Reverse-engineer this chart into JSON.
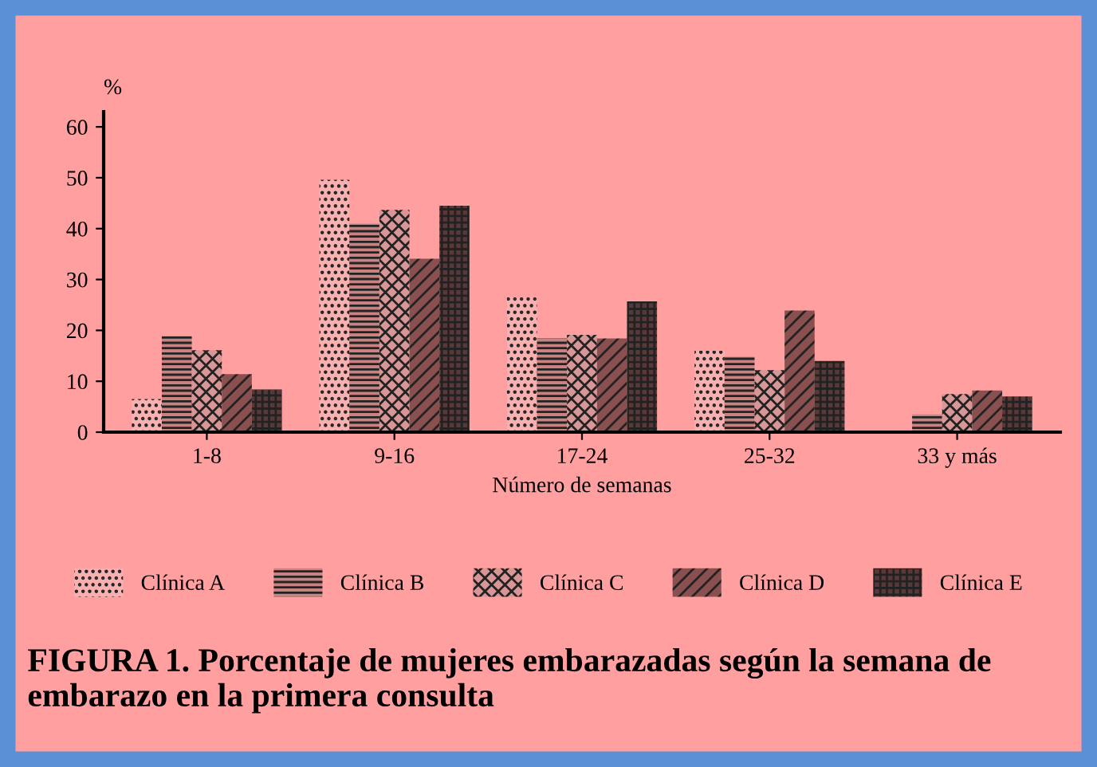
{
  "chart_data": {
    "type": "bar",
    "ylabel": "%",
    "xlabel": "Número de semanas",
    "categories": [
      "1-8",
      "9-16",
      "17-24",
      "25-32",
      "33 y más"
    ],
    "series": [
      {
        "name": "Clínica A",
        "color": "#f8b0b0",
        "values": [
          6.5,
          49.6,
          26.5,
          16,
          0.3
        ]
      },
      {
        "name": "Clínica B",
        "color": "#c88282",
        "values": [
          18.9,
          41,
          18.4,
          14.8,
          3.5
        ]
      },
      {
        "name": "Clínica C",
        "color": "#d89696",
        "values": [
          16.1,
          43.7,
          19.1,
          12.2,
          7.5
        ]
      },
      {
        "name": "Clínica D",
        "color": "#8a5050",
        "values": [
          11.4,
          34.1,
          18.4,
          23.9,
          8.2
        ]
      },
      {
        "name": "Clínica E",
        "color": "#5a3838",
        "values": [
          8.4,
          44.5,
          25.7,
          14,
          7
        ]
      }
    ],
    "ylim": [
      0,
      63
    ],
    "yticks": [
      0,
      10,
      20,
      30,
      40,
      50,
      60
    ],
    "grid": false,
    "legend": "bottom",
    "annotations": [
      "FIGURA 1. Porcentaje de mujeres embarazadas según la semana de embarazo en la primera consulta"
    ]
  }
}
